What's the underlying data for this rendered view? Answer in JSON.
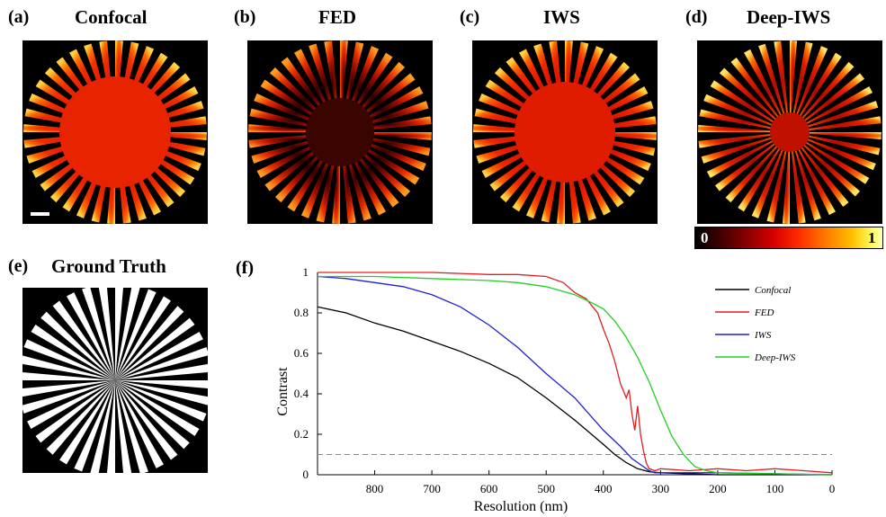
{
  "panels": [
    {
      "label": "(a)",
      "title": "Confocal"
    },
    {
      "label": "(b)",
      "title": "FED"
    },
    {
      "label": "(c)",
      "title": "IWS"
    },
    {
      "label": "(d)",
      "title": "Deep-IWS"
    },
    {
      "label": "(e)",
      "title": "Ground Truth"
    },
    {
      "label": "(f)",
      "title": ""
    }
  ],
  "colorbar": {
    "min": "0",
    "max": "1"
  },
  "chart_data": {
    "type": "line",
    "xlabel": "Resolution (nm)",
    "ylabel": "Contrast",
    "xlim": [
      900,
      0
    ],
    "ylim": [
      0,
      1
    ],
    "xticks": [
      "800",
      "700",
      "600",
      "500",
      "400",
      "300",
      "200",
      "100",
      "0"
    ],
    "yticks": [
      "0",
      "0.2",
      "0.4",
      "0.6",
      "0.8",
      "1"
    ],
    "threshold": 0.1,
    "legend_position": "right",
    "series": [
      {
        "name": "Confocal",
        "color": "#000000",
        "x": [
          900,
          850,
          800,
          750,
          700,
          650,
          600,
          550,
          500,
          450,
          400,
          380,
          360,
          340,
          320,
          300,
          250,
          200,
          100,
          0
        ],
        "y": [
          0.83,
          0.8,
          0.75,
          0.71,
          0.66,
          0.61,
          0.55,
          0.48,
          0.38,
          0.27,
          0.15,
          0.1,
          0.06,
          0.03,
          0.015,
          0.01,
          0.005,
          0.0,
          0.0,
          0.0
        ]
      },
      {
        "name": "FED",
        "color": "#e02020",
        "x": [
          900,
          800,
          700,
          600,
          550,
          500,
          470,
          450,
          430,
          410,
          400,
          390,
          380,
          370,
          360,
          355,
          350,
          345,
          340,
          335,
          330,
          325,
          320,
          310,
          300,
          250,
          200,
          150,
          100,
          50,
          0
        ],
        "y": [
          1.0,
          1.0,
          1.0,
          0.99,
          0.99,
          0.98,
          0.95,
          0.9,
          0.87,
          0.8,
          0.72,
          0.65,
          0.56,
          0.45,
          0.38,
          0.42,
          0.3,
          0.22,
          0.34,
          0.2,
          0.12,
          0.06,
          0.03,
          0.02,
          0.03,
          0.02,
          0.03,
          0.02,
          0.03,
          0.02,
          0.01
        ]
      },
      {
        "name": "IWS",
        "color": "#2020d0",
        "x": [
          900,
          850,
          800,
          750,
          700,
          650,
          600,
          550,
          500,
          450,
          400,
          370,
          350,
          330,
          320,
          310,
          300,
          250,
          200,
          100,
          0
        ],
        "y": [
          0.98,
          0.97,
          0.95,
          0.93,
          0.89,
          0.83,
          0.74,
          0.63,
          0.5,
          0.38,
          0.22,
          0.14,
          0.08,
          0.04,
          0.02,
          0.01,
          0.01,
          0.01,
          0.01,
          0.005,
          0.0
        ]
      },
      {
        "name": "Deep-IWS",
        "color": "#20d020",
        "x": [
          900,
          800,
          700,
          600,
          550,
          500,
          450,
          420,
          400,
          380,
          360,
          340,
          320,
          300,
          280,
          260,
          240,
          220,
          200,
          100,
          0
        ],
        "y": [
          0.98,
          0.98,
          0.97,
          0.96,
          0.95,
          0.93,
          0.89,
          0.85,
          0.82,
          0.76,
          0.68,
          0.58,
          0.46,
          0.32,
          0.19,
          0.1,
          0.04,
          0.02,
          0.01,
          0.005,
          0.0
        ]
      }
    ]
  }
}
